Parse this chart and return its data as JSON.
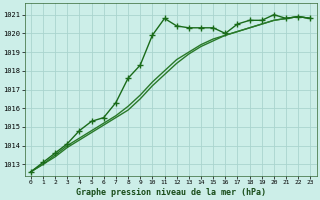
{
  "title": "Graphe pression niveau de la mer (hPa)",
  "background_color": "#cceee8",
  "grid_color": "#aad4ce",
  "xlim": [
    -0.5,
    23.5
  ],
  "ylim": [
    1012.4,
    1021.6
  ],
  "yticks": [
    1013,
    1014,
    1015,
    1016,
    1017,
    1018,
    1019,
    1020,
    1021
  ],
  "xticks": [
    0,
    1,
    2,
    3,
    4,
    5,
    6,
    7,
    8,
    9,
    10,
    11,
    12,
    13,
    14,
    15,
    16,
    17,
    18,
    19,
    20,
    21,
    22,
    23
  ],
  "series1": {
    "x": [
      0,
      1,
      2,
      3,
      4,
      5,
      6,
      7,
      8,
      9,
      10,
      11,
      12,
      13,
      14,
      15,
      16,
      17,
      18,
      19,
      20,
      21,
      22,
      23
    ],
    "y": [
      1012.6,
      1013.1,
      1013.6,
      1014.1,
      1014.8,
      1015.3,
      1015.5,
      1016.3,
      1017.6,
      1018.3,
      1019.9,
      1020.8,
      1020.4,
      1020.3,
      1020.3,
      1020.3,
      1020.0,
      1020.5,
      1020.7,
      1020.7,
      1021.0,
      1020.8,
      1020.9,
      1020.8
    ],
    "marker": "+",
    "markersize": 4.0,
    "linewidth": 1.0,
    "color": "#1a6b1a"
  },
  "series2": {
    "x": [
      0,
      1,
      2,
      3,
      4,
      5,
      6,
      7,
      8,
      9,
      10,
      11,
      12,
      13,
      14,
      15,
      16,
      17,
      18,
      19,
      20,
      21,
      22,
      23
    ],
    "y": [
      1012.6,
      1013.0,
      1013.5,
      1014.0,
      1014.4,
      1014.8,
      1015.2,
      1015.6,
      1016.1,
      1016.7,
      1017.4,
      1018.0,
      1018.6,
      1019.0,
      1019.4,
      1019.7,
      1019.9,
      1020.1,
      1020.3,
      1020.5,
      1020.7,
      1020.8,
      1020.9,
      1020.8
    ],
    "marker": null,
    "linewidth": 1.0,
    "color": "#2a7a2a"
  },
  "series3": {
    "x": [
      0,
      1,
      2,
      3,
      4,
      5,
      6,
      7,
      8,
      9,
      10,
      11,
      12,
      13,
      14,
      15,
      16,
      17,
      18,
      19,
      20,
      21,
      22,
      23
    ],
    "y": [
      1012.6,
      1013.0,
      1013.4,
      1013.9,
      1014.3,
      1014.7,
      1015.1,
      1015.5,
      1015.9,
      1016.5,
      1017.2,
      1017.8,
      1018.4,
      1018.9,
      1019.3,
      1019.6,
      1019.9,
      1020.1,
      1020.3,
      1020.5,
      1020.7,
      1020.8,
      1020.9,
      1020.8
    ],
    "marker": null,
    "linewidth": 1.0,
    "color": "#2a7a2a"
  }
}
